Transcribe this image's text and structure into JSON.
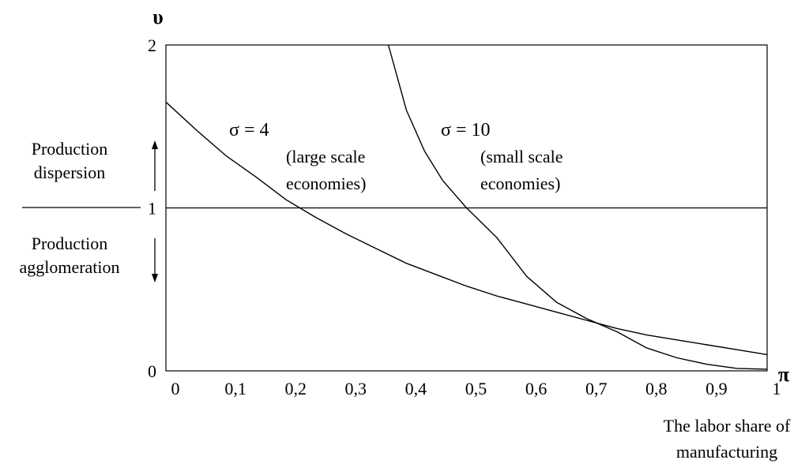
{
  "chart_data": {
    "type": "line",
    "ylabel": "υ",
    "xlabel": "π",
    "xlabel_note": [
      "The labor share of",
      "manufacturing"
    ],
    "xlim": [
      0,
      1
    ],
    "ylim": [
      0,
      2
    ],
    "x_ticks": [
      "0",
      "0,1",
      "0,2",
      "0,3",
      "0,4",
      "0,5",
      "0,6",
      "0,7",
      "0,8",
      "0,9",
      "1"
    ],
    "y_ticks": [
      "0",
      "1",
      "2"
    ],
    "reference_line": {
      "y": 1
    },
    "series": [
      {
        "name": "σ = 4",
        "note": "(large scale economies)",
        "x": [
          0,
          0.05,
          0.1,
          0.15,
          0.2,
          0.25,
          0.3,
          0.35,
          0.4,
          0.45,
          0.5,
          0.55,
          0.6,
          0.65,
          0.7,
          0.75,
          0.8,
          0.85,
          0.9,
          0.95,
          1
        ],
        "y": [
          1.65,
          1.48,
          1.32,
          1.19,
          1.05,
          0.94,
          0.84,
          0.75,
          0.66,
          0.59,
          0.52,
          0.46,
          0.41,
          0.36,
          0.31,
          0.26,
          0.22,
          0.19,
          0.16,
          0.13,
          0.1
        ]
      },
      {
        "name": "σ = 10",
        "note": "(small scale economies)",
        "x": [
          0.37,
          0.4,
          0.43,
          0.46,
          0.5,
          0.55,
          0.6,
          0.65,
          0.7,
          0.75,
          0.8,
          0.85,
          0.9,
          0.95,
          1
        ],
        "y": [
          2.0,
          1.6,
          1.35,
          1.17,
          1.0,
          0.82,
          0.58,
          0.42,
          0.32,
          0.24,
          0.14,
          0.08,
          0.04,
          0.015,
          0.01
        ]
      }
    ]
  },
  "annotations": {
    "dispersion": [
      "Production",
      "dispersion"
    ],
    "agglomeration": [
      "Production",
      "agglomeration"
    ]
  }
}
